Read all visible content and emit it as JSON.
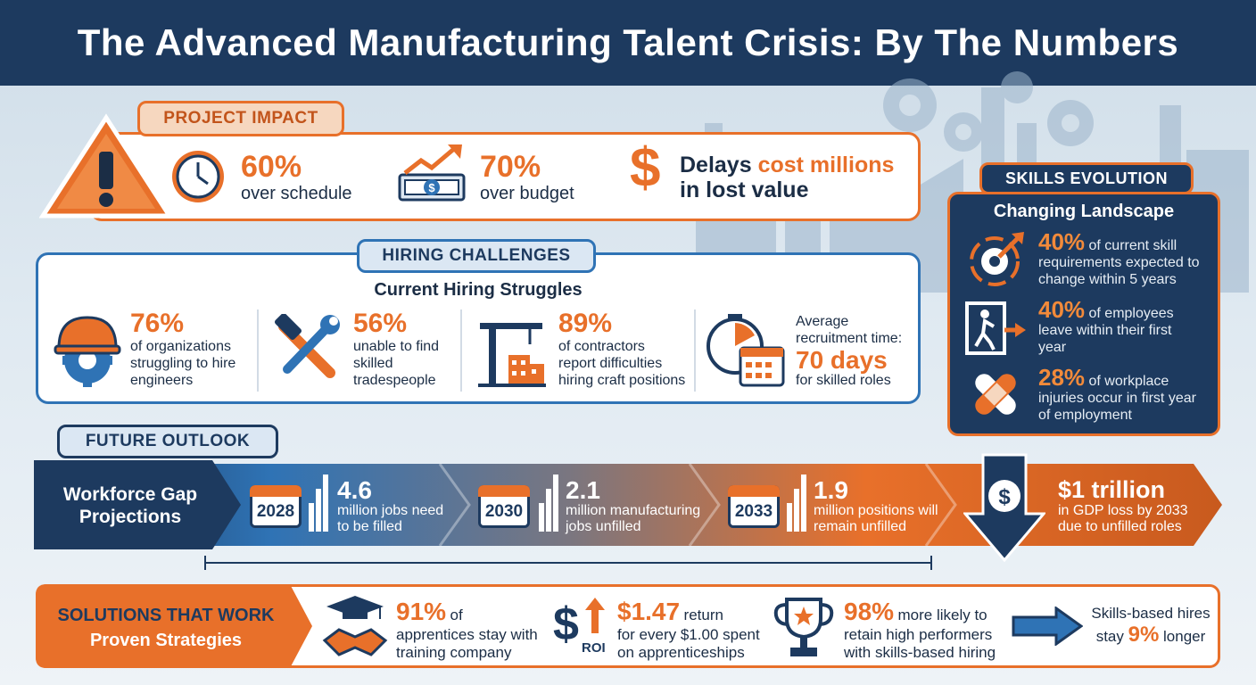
{
  "title": "The Advanced Manufacturing Talent Crisis: By The Numbers",
  "colors": {
    "navy": "#1d3a5f",
    "orange": "#e8702a",
    "blue": "#2f73b5",
    "background": "#dfe9f1"
  },
  "project_impact": {
    "badge": "PROJECT IMPACT",
    "stats": [
      {
        "icon": "clock-icon",
        "value": "60%",
        "text": "over schedule"
      },
      {
        "icon": "money-rising-icon",
        "value": "70%",
        "text": "over budget"
      },
      {
        "icon": "dollar-icon",
        "lead": "Delays",
        "highlight": "cost millions",
        "text": "in lost value"
      }
    ]
  },
  "hiring": {
    "badge": "HIRING CHALLENGES",
    "heading": "Current Hiring Struggles",
    "stats": [
      {
        "icon": "hardhat-gear-icon",
        "value": "76%",
        "text1": "of organizations",
        "text2": "struggling to hire",
        "text3": "engineers"
      },
      {
        "icon": "wrench-hammer-icon",
        "value": "56%",
        "text1": "unable to find",
        "text2": "skilled",
        "text3": "tradespeople"
      },
      {
        "icon": "crane-building-icon",
        "value": "89%",
        "text1": "of contractors",
        "text2": "report difficulties",
        "text3": "hiring craft positions"
      },
      {
        "icon": "stopwatch-calendar-icon",
        "lead1": "Average",
        "lead2": "recruitment time:",
        "value": "70 days",
        "text": "for skilled roles"
      }
    ]
  },
  "skills": {
    "badge": "SKILLS EVOLUTION",
    "heading": "Changing Landscape",
    "items": [
      {
        "icon": "gear-arrow-icon",
        "value": "40%",
        "text1": "of current skill",
        "text2": "requirements expected to",
        "text3": "change within 5 years"
      },
      {
        "icon": "exit-door-icon",
        "value": "40%",
        "text1": "of employees",
        "text2": "leave within their first",
        "text3": "year"
      },
      {
        "icon": "bandage-icon",
        "value": "28%",
        "text1": "of workplace",
        "text2": "injuries occur in first year",
        "text3": "of employment"
      }
    ]
  },
  "future": {
    "badge": "FUTURE OUTLOOK",
    "label1": "Workforce Gap",
    "label2": "Projections",
    "steps": [
      {
        "year": "2028",
        "value": "4.6",
        "text1": "million jobs need",
        "text2": "to be filled"
      },
      {
        "year": "2030",
        "value": "2.1",
        "text1": "million manufacturing",
        "text2": "jobs unfilled"
      },
      {
        "year": "2033",
        "value": "1.9",
        "text1": "million positions will",
        "text2": "remain unfilled"
      }
    ],
    "final": {
      "icon": "dollar-down-arrow-icon",
      "value": "$1 trillion",
      "text1": "in GDP loss by 2033",
      "text2": "due to unfilled roles"
    }
  },
  "solutions": {
    "title1": "SOLUTIONS THAT WORK",
    "title2": "Proven Strategies",
    "items": [
      {
        "icon": "handshake-graduate-icon",
        "value": "91%",
        "suffix": "of",
        "text1": "apprentices stay with",
        "text2": "training company"
      },
      {
        "icon": "roi-icon",
        "roi_label": "ROI",
        "value": "$1.47",
        "suffix": "return",
        "text1": "for every $1.00 spent",
        "text2": "on apprenticeships"
      },
      {
        "icon": "trophy-icon",
        "value": "98%",
        "suffix": "more likely to",
        "text1": "retain high performers",
        "text2": "with skills-based hiring"
      },
      {
        "icon": "right-arrow-icon",
        "text1": "Skills-based hires",
        "lead": "stay",
        "value": "9%",
        "text2": "longer"
      }
    ]
  }
}
